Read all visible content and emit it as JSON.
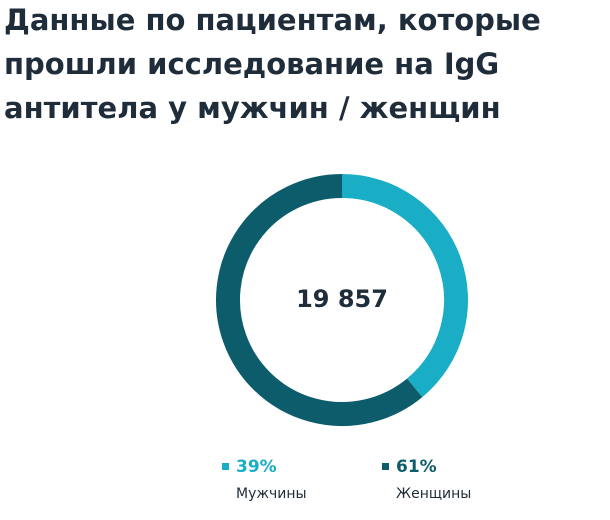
{
  "chart_data": {
    "type": "donut",
    "title": [
      "Данные по пациентам, которые",
      "прошли исследование на IgG",
      "антитела у мужчин / женщин"
    ],
    "total": {
      "value": 19857,
      "label": "19 857"
    },
    "categories": [
      "Мужчины",
      "Женщины"
    ],
    "values": [
      39,
      61
    ],
    "value_labels": [
      "39%",
      "61%"
    ],
    "colors": [
      "#1aadc6",
      "#0d5c6b"
    ]
  }
}
